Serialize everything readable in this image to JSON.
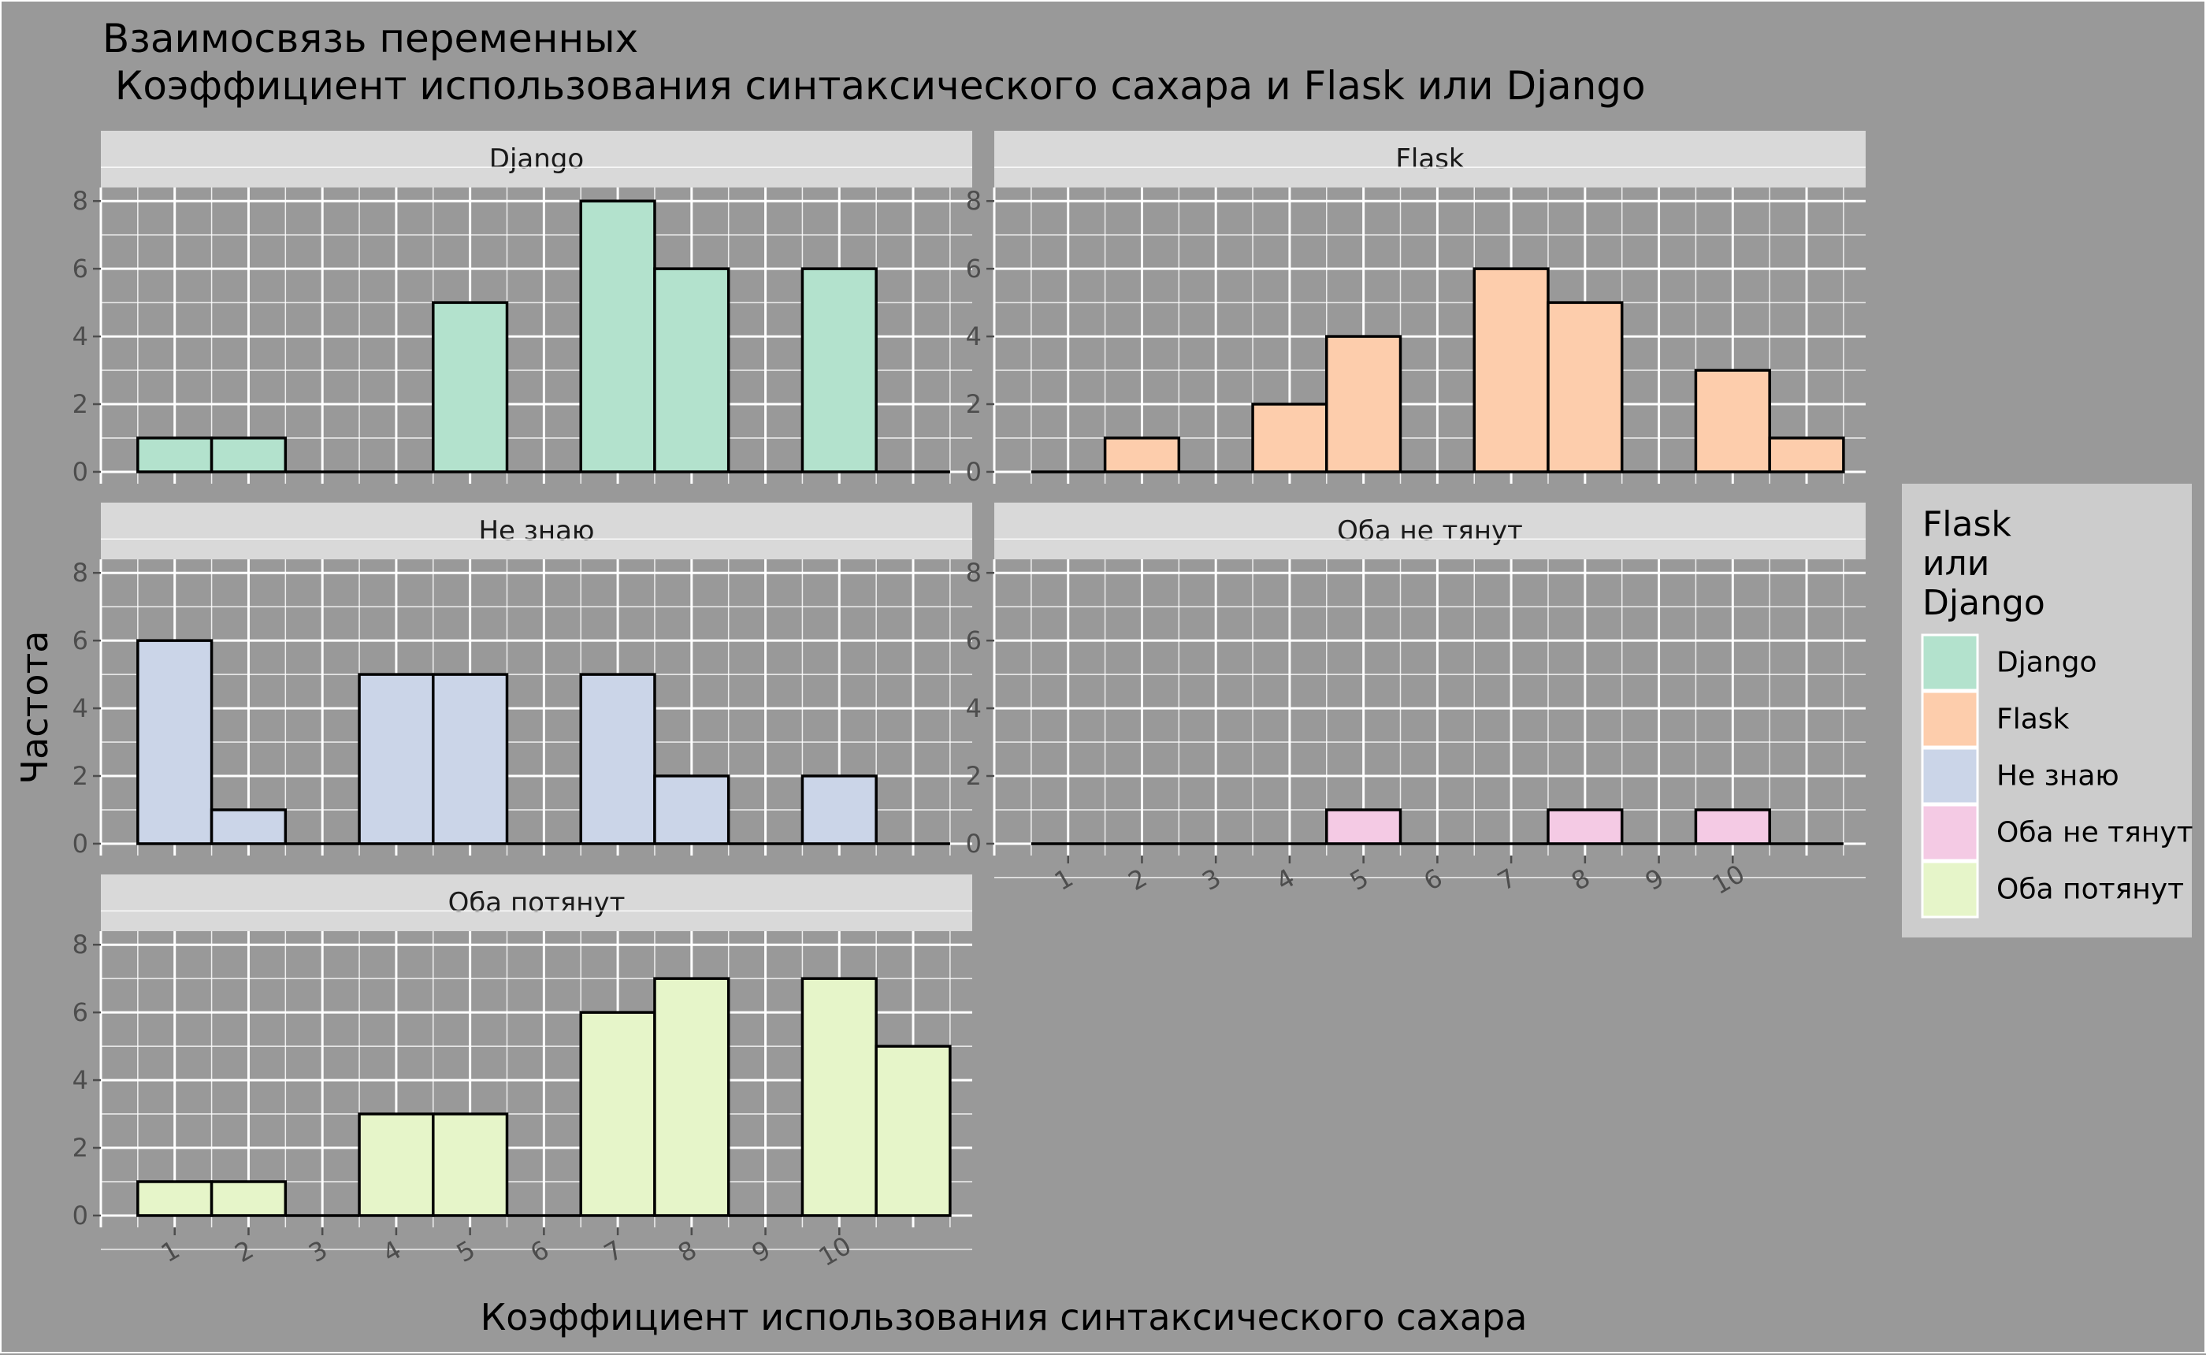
{
  "chart_data": {
    "type": "bar",
    "title_lines": [
      "Взаимосвязь переменных",
      " Коэффициент использования синтаксического сахара и Flask или Django"
    ],
    "xlabel": "Коэффициент использования синтаксического сахара",
    "ylabel": "Частота",
    "x_ticks": [
      "1",
      "2",
      "3",
      "4",
      "5",
      "6",
      "7",
      "8",
      "9",
      "10"
    ],
    "y_ticks": [
      0,
      2,
      4,
      6,
      8
    ],
    "ylim": [
      0,
      8
    ],
    "legend": {
      "title_lines": [
        "Flask",
        "или",
        "Django"
      ],
      "position": "right"
    },
    "categories": [
      0,
      1,
      2,
      3,
      4,
      5,
      6,
      7,
      8,
      9,
      10
    ],
    "panels": [
      {
        "name": "Django",
        "color": "#b3e2cd",
        "values": [
          1,
          1,
          0,
          0,
          5,
          0,
          8,
          6,
          0,
          6,
          0
        ]
      },
      {
        "name": "Flask",
        "color": "#fdcdac",
        "values": [
          0,
          1,
          0,
          2,
          4,
          0,
          6,
          5,
          0,
          3,
          1
        ]
      },
      {
        "name": "Не знаю",
        "color": "#cbd5e8",
        "values": [
          6,
          1,
          0,
          5,
          5,
          0,
          5,
          2,
          0,
          2,
          0
        ]
      },
      {
        "name": "Оба не тянут",
        "color": "#f4cae4",
        "values": [
          0,
          0,
          0,
          0,
          1,
          0,
          0,
          1,
          0,
          1,
          0
        ]
      },
      {
        "name": "Оба потянут",
        "color": "#e6f5c9",
        "values": [
          1,
          1,
          0,
          3,
          3,
          0,
          6,
          7,
          0,
          7,
          5
        ]
      }
    ]
  }
}
